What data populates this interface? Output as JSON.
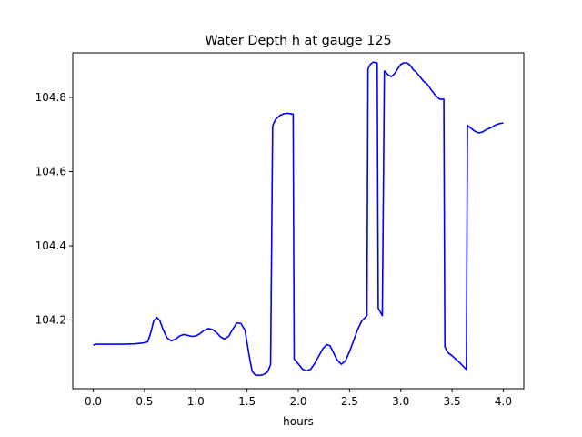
{
  "chart_data": {
    "type": "line",
    "title": "Water Depth h at gauge 125",
    "xlabel": "hours",
    "ylabel": "",
    "xlim": [
      -0.2,
      4.2
    ],
    "ylim": [
      104.015,
      104.92
    ],
    "xticks": [
      0.0,
      0.5,
      1.0,
      1.5,
      2.0,
      2.5,
      3.0,
      3.5,
      4.0
    ],
    "xtick_labels": [
      "0.0",
      "0.5",
      "1.0",
      "1.5",
      "2.0",
      "2.5",
      "3.0",
      "3.5",
      "4.0"
    ],
    "yticks": [
      104.2,
      104.4,
      104.6,
      104.8
    ],
    "ytick_labels": [
      "104.2",
      "104.4",
      "104.6",
      "104.8"
    ],
    "grid": false,
    "legend": "none",
    "series": [
      {
        "color": "#0000ff",
        "x": [
          0.0,
          0.02,
          0.1,
          0.2,
          0.3,
          0.4,
          0.48,
          0.53,
          0.56,
          0.59,
          0.62,
          0.65,
          0.68,
          0.72,
          0.76,
          0.8,
          0.84,
          0.88,
          0.92,
          0.96,
          1.0,
          1.04,
          1.08,
          1.12,
          1.16,
          1.2,
          1.24,
          1.28,
          1.32,
          1.36,
          1.4,
          1.44,
          1.48,
          1.52,
          1.55,
          1.58,
          1.62,
          1.66,
          1.7,
          1.73,
          1.75,
          1.76,
          1.78,
          1.82,
          1.86,
          1.9,
          1.94,
          1.95,
          1.96,
          2.0,
          2.04,
          2.08,
          2.12,
          2.16,
          2.2,
          2.24,
          2.28,
          2.31,
          2.34,
          2.38,
          2.42,
          2.46,
          2.5,
          2.54,
          2.58,
          2.62,
          2.67,
          2.68,
          2.7,
          2.73,
          2.76,
          2.77,
          2.78,
          2.8,
          2.82,
          2.84,
          2.85,
          2.88,
          2.91,
          2.94,
          2.97,
          3.0,
          3.03,
          3.06,
          3.09,
          3.12,
          3.15,
          3.18,
          3.22,
          3.26,
          3.3,
          3.34,
          3.38,
          3.42,
          3.43,
          3.46,
          3.5,
          3.54,
          3.58,
          3.62,
          3.64,
          3.65,
          3.68,
          3.72,
          3.76,
          3.8,
          3.84,
          3.88,
          3.92,
          3.96,
          4.0
        ],
        "y": [
          104.132,
          104.135,
          104.135,
          104.135,
          104.135,
          104.136,
          104.138,
          104.141,
          104.165,
          104.198,
          104.207,
          104.198,
          104.175,
          104.152,
          104.144,
          104.148,
          104.157,
          104.161,
          104.159,
          104.156,
          104.157,
          104.163,
          104.172,
          104.177,
          104.175,
          104.167,
          104.155,
          104.149,
          104.156,
          104.175,
          104.192,
          104.191,
          104.173,
          104.105,
          104.062,
          104.052,
          104.051,
          104.053,
          104.06,
          104.08,
          104.722,
          104.73,
          104.741,
          104.751,
          104.756,
          104.757,
          104.755,
          104.755,
          104.095,
          104.082,
          104.068,
          104.063,
          104.067,
          104.083,
          104.103,
          104.123,
          104.134,
          104.131,
          104.114,
          104.092,
          104.081,
          104.09,
          104.115,
          104.145,
          104.175,
          104.198,
          104.212,
          104.876,
          104.888,
          104.895,
          104.893,
          104.893,
          104.232,
          104.222,
          104.212,
          104.871,
          104.868,
          104.86,
          104.856,
          104.864,
          104.877,
          104.889,
          104.893,
          104.893,
          104.887,
          104.875,
          104.868,
          104.858,
          104.844,
          104.835,
          104.819,
          104.805,
          104.795,
          104.795,
          104.128,
          104.112,
          104.104,
          104.094,
          104.084,
          104.072,
          104.067,
          104.725,
          104.718,
          104.709,
          104.704,
          104.707,
          104.714,
          104.718,
          104.725,
          104.729,
          104.731
        ]
      }
    ]
  }
}
